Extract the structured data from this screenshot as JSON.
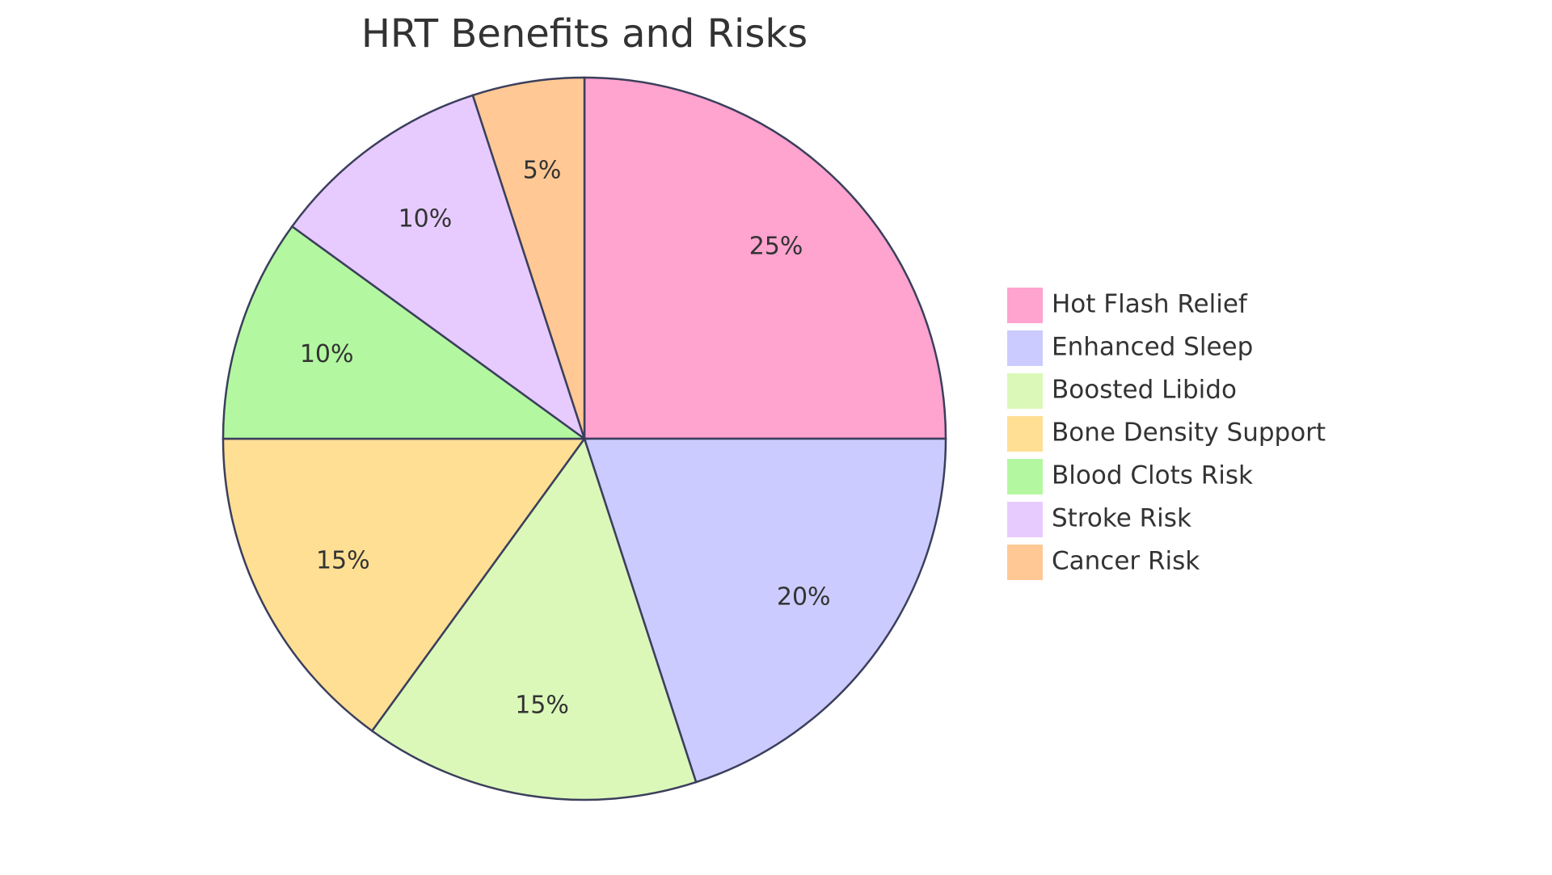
{
  "chart_data": {
    "type": "pie",
    "title": "HRT Benefits and Risks",
    "legend_position": "right",
    "slices": [
      {
        "label": "Hot Flash Relief",
        "value": 25,
        "display": "25%",
        "color": "#ffa3cf"
      },
      {
        "label": "Enhanced Sleep",
        "value": 20,
        "display": "20%",
        "color": "#cbcbff"
      },
      {
        "label": "Boosted Libido",
        "value": 15,
        "display": "15%",
        "color": "#dbf8b9"
      },
      {
        "label": "Bone Density Support",
        "value": 15,
        "display": "15%",
        "color": "#ffdf94"
      },
      {
        "label": "Blood Clots Risk",
        "value": 10,
        "display": "10%",
        "color": "#b3f8a0"
      },
      {
        "label": "Stroke Risk",
        "value": 10,
        "display": "10%",
        "color": "#e7cbff"
      },
      {
        "label": "Cancer Risk",
        "value": 5,
        "display": "5%",
        "color": "#ffc894"
      }
    ]
  }
}
